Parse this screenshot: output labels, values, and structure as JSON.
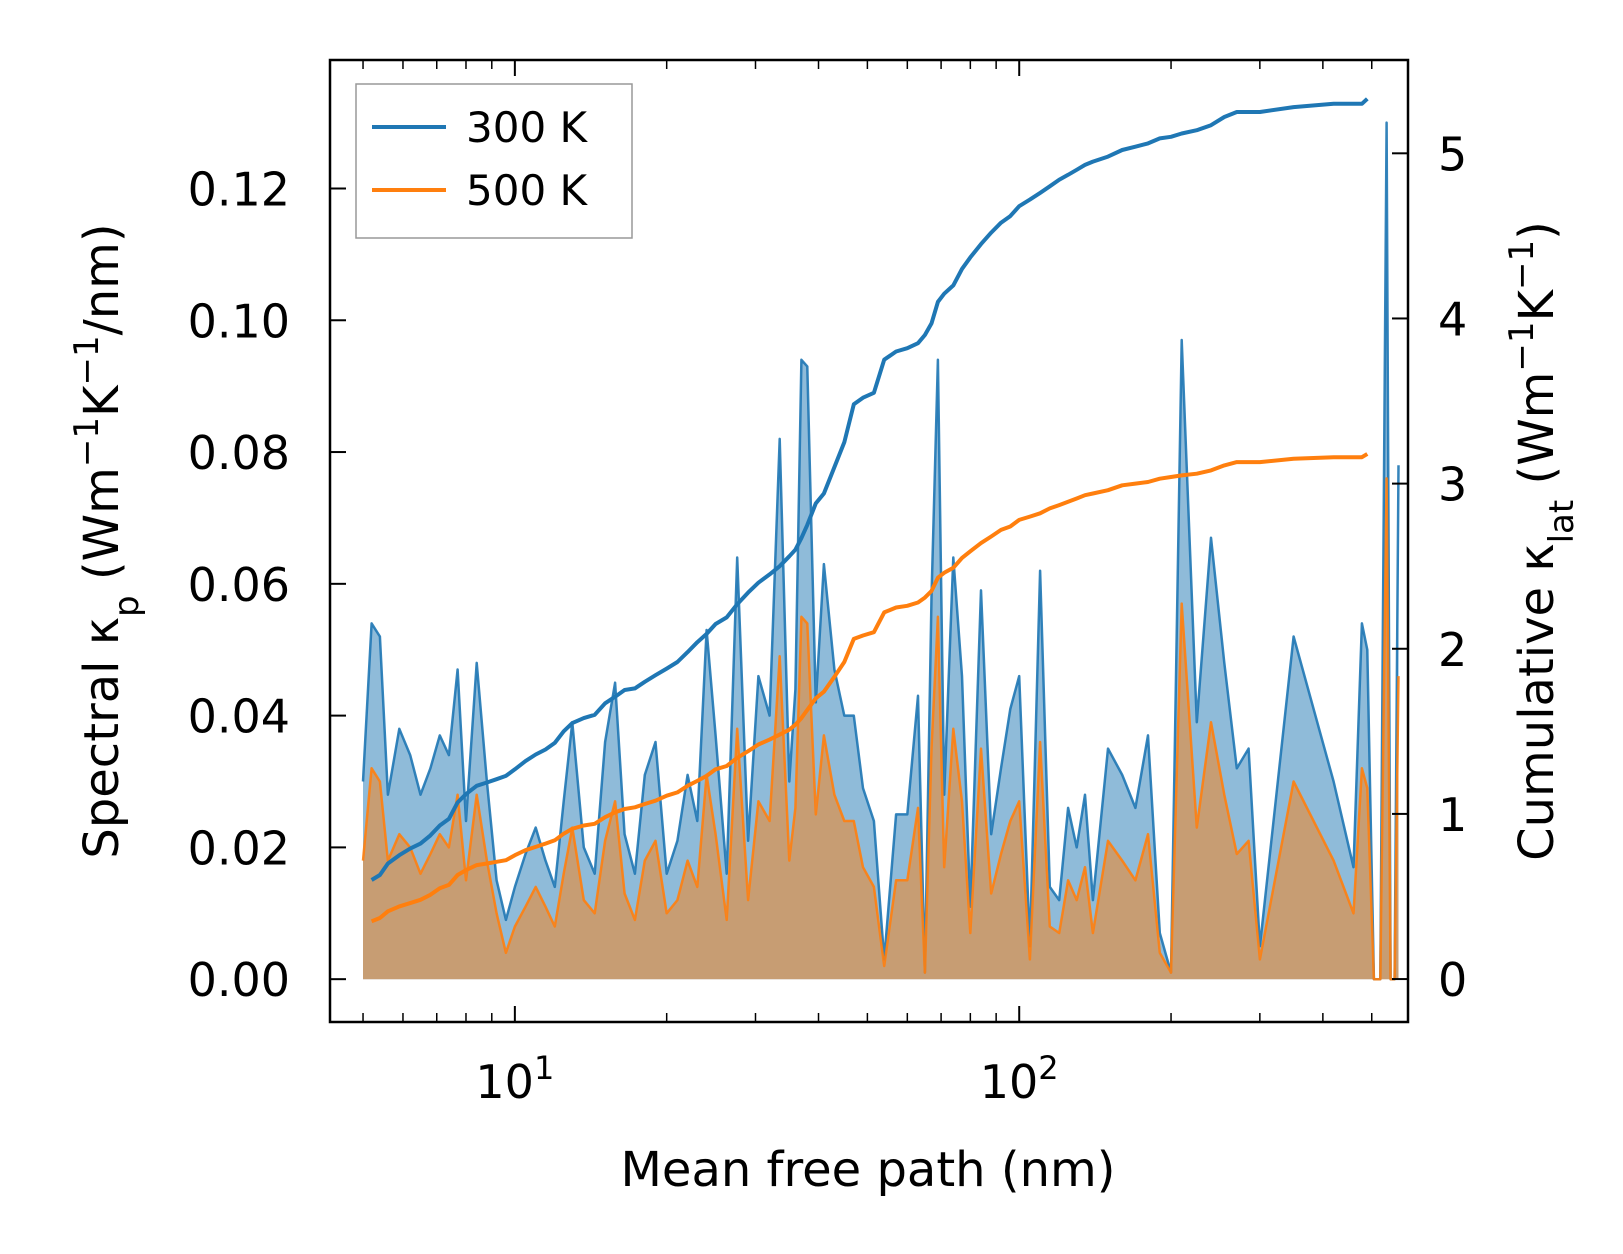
{
  "colors": {
    "t300": "#1f77b4",
    "t500": "#ff7f0e",
    "axis": "#000000",
    "legend_border": "#999999"
  },
  "chart_data": {
    "type": "line",
    "xlabel": "Mean free path (nm)",
    "xscale": "log",
    "xlim": [
      4.3,
      590
    ],
    "x_ticks": [
      {
        "value": 10,
        "base": "10",
        "exp": "1"
      },
      {
        "value": 100,
        "base": "10",
        "exp": "2"
      }
    ],
    "ylabel_left": {
      "pre": "Spectral κ",
      "sub": "p",
      "mid": " (Wm",
      "sup1": "−1",
      "k": "K",
      "sup2": "−1",
      "post": "/nm)"
    },
    "ylabel_right": {
      "pre": "Cumulative κ",
      "sub": "lat",
      "mid": " (Wm",
      "sup1": "−1",
      "k": "K",
      "sup2": "−1",
      "post": ")"
    },
    "ylim_left": [
      -0.0065,
      0.1395
    ],
    "ylim_right": [
      -0.26,
      5.565
    ],
    "y_ticks_left": [
      "0.00",
      "0.02",
      "0.04",
      "0.06",
      "0.08",
      "0.10",
      "0.12"
    ],
    "y_ticks_right": [
      "0",
      "1",
      "2",
      "3",
      "4",
      "5"
    ],
    "legend": {
      "position": "top-left",
      "entries": [
        "300 K",
        "500 K"
      ]
    },
    "spectral_x": [
      5.0,
      5.2,
      5.4,
      5.6,
      5.9,
      6.2,
      6.5,
      6.8,
      7.1,
      7.4,
      7.7,
      8.0,
      8.4,
      8.8,
      9.2,
      9.6,
      10.0,
      10.5,
      11.0,
      11.5,
      12.0,
      12.5,
      13.0,
      13.7,
      14.4,
      15.1,
      15.8,
      16.5,
      17.3,
      18.1,
      19.0,
      20.0,
      21.0,
      22.0,
      23.0,
      24.0,
      25.0,
      26.3,
      27.6,
      29.0,
      30.4,
      32.0,
      33.5,
      35.0,
      36.0,
      37.0,
      38.0,
      39.5,
      41.0,
      43.0,
      45.0,
      47.0,
      49.0,
      51.5,
      54.0,
      57.0,
      60.0,
      63.0,
      65.0,
      67.0,
      69.0,
      71.0,
      74.0,
      77.0,
      80.0,
      84.0,
      88.0,
      92.0,
      96.0,
      100.0,
      105.0,
      110.0,
      115.0,
      120.0,
      125.0,
      130.0,
      135.0,
      140.0,
      150.0,
      160.0,
      170.0,
      180.0,
      190.0,
      200.0,
      210.0,
      225.0,
      240.0,
      255.0,
      270.0,
      285.0,
      300.0,
      350.0,
      420.0,
      460.0,
      478.0,
      490.0,
      505.0,
      520.0,
      535.0,
      545.0,
      555.0,
      565.0
    ],
    "series": [
      {
        "name": "300 K",
        "spectral": [
          0.03,
          0.054,
          0.052,
          0.028,
          0.038,
          0.034,
          0.028,
          0.032,
          0.037,
          0.034,
          0.047,
          0.024,
          0.048,
          0.03,
          0.015,
          0.009,
          0.014,
          0.019,
          0.023,
          0.018,
          0.014,
          0.027,
          0.039,
          0.02,
          0.016,
          0.036,
          0.045,
          0.022,
          0.016,
          0.031,
          0.036,
          0.016,
          0.021,
          0.031,
          0.024,
          0.053,
          0.037,
          0.016,
          0.064,
          0.021,
          0.046,
          0.04,
          0.082,
          0.03,
          0.044,
          0.094,
          0.093,
          0.042,
          0.063,
          0.047,
          0.04,
          0.04,
          0.029,
          0.024,
          0.003,
          0.025,
          0.025,
          0.043,
          0.001,
          0.058,
          0.094,
          0.028,
          0.064,
          0.046,
          0.011,
          0.059,
          0.022,
          0.032,
          0.041,
          0.046,
          0.005,
          0.062,
          0.014,
          0.012,
          0.026,
          0.02,
          0.028,
          0.012,
          0.035,
          0.031,
          0.026,
          0.037,
          0.007,
          0.001,
          0.097,
          0.039,
          0.067,
          0.048,
          0.032,
          0.035,
          0.005,
          0.052,
          0.03,
          0.017,
          0.054,
          0.05,
          0.0,
          0.0,
          0.13,
          0.0,
          0.0,
          0.078
        ],
        "cumulative": [
          0.0,
          0.6,
          0.63,
          0.7,
          0.75,
          0.79,
          0.82,
          0.87,
          0.93,
          0.97,
          1.07,
          1.12,
          1.17,
          1.19,
          1.21,
          1.23,
          1.27,
          1.32,
          1.36,
          1.39,
          1.43,
          1.5,
          1.55,
          1.58,
          1.6,
          1.67,
          1.71,
          1.75,
          1.76,
          1.8,
          1.84,
          1.88,
          1.92,
          1.98,
          2.04,
          2.09,
          2.15,
          2.19,
          2.27,
          2.34,
          2.4,
          2.45,
          2.5,
          2.56,
          2.6,
          2.67,
          2.75,
          2.88,
          2.94,
          3.1,
          3.25,
          3.48,
          3.52,
          3.55,
          3.75,
          3.8,
          3.82,
          3.85,
          3.9,
          3.97,
          4.1,
          4.15,
          4.2,
          4.3,
          4.37,
          4.45,
          4.52,
          4.58,
          4.62,
          4.68,
          4.72,
          4.76,
          4.8,
          4.84,
          4.87,
          4.9,
          4.93,
          4.95,
          4.98,
          5.02,
          5.04,
          5.06,
          5.09,
          5.1,
          5.12,
          5.14,
          5.17,
          5.22,
          5.25,
          5.25,
          5.25,
          5.28,
          5.3,
          5.3,
          5.3,
          5.33
        ]
      },
      {
        "name": "500 K",
        "spectral": [
          0.018,
          0.032,
          0.03,
          0.018,
          0.022,
          0.02,
          0.016,
          0.019,
          0.022,
          0.02,
          0.028,
          0.015,
          0.028,
          0.018,
          0.01,
          0.004,
          0.008,
          0.011,
          0.014,
          0.011,
          0.008,
          0.016,
          0.023,
          0.012,
          0.01,
          0.021,
          0.027,
          0.013,
          0.009,
          0.018,
          0.021,
          0.01,
          0.012,
          0.018,
          0.014,
          0.031,
          0.022,
          0.009,
          0.038,
          0.012,
          0.027,
          0.024,
          0.049,
          0.018,
          0.026,
          0.055,
          0.054,
          0.025,
          0.037,
          0.028,
          0.024,
          0.024,
          0.017,
          0.014,
          0.002,
          0.015,
          0.015,
          0.026,
          0.001,
          0.035,
          0.055,
          0.017,
          0.038,
          0.027,
          0.007,
          0.035,
          0.013,
          0.019,
          0.024,
          0.027,
          0.003,
          0.036,
          0.008,
          0.007,
          0.015,
          0.012,
          0.017,
          0.007,
          0.021,
          0.018,
          0.015,
          0.022,
          0.004,
          0.001,
          0.057,
          0.023,
          0.039,
          0.028,
          0.019,
          0.021,
          0.003,
          0.03,
          0.018,
          0.01,
          0.032,
          0.029,
          0.0,
          0.0,
          0.076,
          0.0,
          0.0,
          0.046
        ],
        "cumulative": [
          0.0,
          0.35,
          0.37,
          0.41,
          0.44,
          0.46,
          0.48,
          0.51,
          0.55,
          0.57,
          0.63,
          0.66,
          0.69,
          0.7,
          0.71,
          0.72,
          0.75,
          0.78,
          0.8,
          0.82,
          0.84,
          0.88,
          0.91,
          0.93,
          0.94,
          0.98,
          1.01,
          1.03,
          1.04,
          1.06,
          1.08,
          1.11,
          1.13,
          1.17,
          1.2,
          1.23,
          1.27,
          1.29,
          1.34,
          1.38,
          1.42,
          1.45,
          1.48,
          1.51,
          1.54,
          1.58,
          1.63,
          1.7,
          1.74,
          1.83,
          1.92,
          2.06,
          2.08,
          2.1,
          2.22,
          2.25,
          2.26,
          2.28,
          2.31,
          2.35,
          2.43,
          2.46,
          2.49,
          2.55,
          2.59,
          2.64,
          2.68,
          2.72,
          2.74,
          2.78,
          2.8,
          2.82,
          2.85,
          2.87,
          2.89,
          2.91,
          2.93,
          2.94,
          2.96,
          2.99,
          3.0,
          3.01,
          3.03,
          3.04,
          3.05,
          3.06,
          3.08,
          3.11,
          3.13,
          3.13,
          3.13,
          3.15,
          3.16,
          3.16,
          3.16,
          3.18
        ]
      }
    ]
  }
}
